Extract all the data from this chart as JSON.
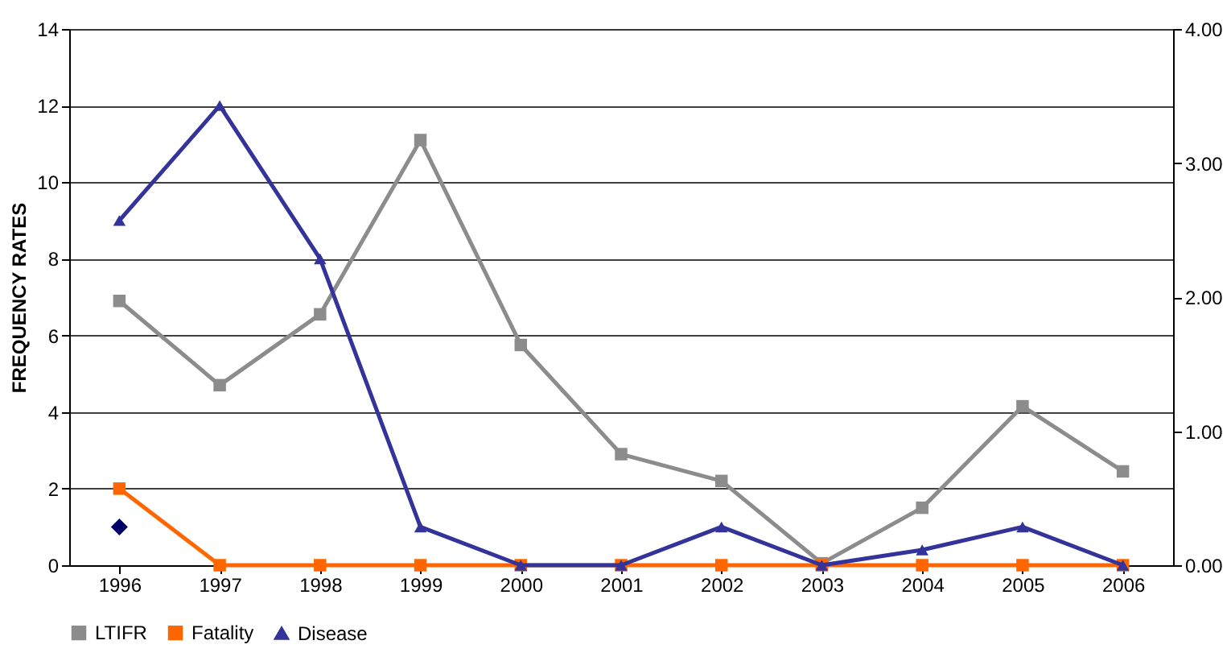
{
  "chart_data": {
    "type": "line",
    "ylabel": "FREQUENCY RATES",
    "categories": [
      "1996",
      "1997",
      "1998",
      "1999",
      "2000",
      "2001",
      "2002",
      "2003",
      "2004",
      "2005",
      "2006"
    ],
    "series": [
      {
        "name": "LTIFR",
        "color": "#8c8c8c",
        "marker": "square",
        "values": [
          6.9,
          4.7,
          6.55,
          11.1,
          5.75,
          2.9,
          2.2,
          0.05,
          1.5,
          4.15,
          2.45
        ]
      },
      {
        "name": "Fatality",
        "color": "#ff6600",
        "marker": "square",
        "values": [
          2,
          0,
          0,
          0,
          0,
          0,
          0,
          0,
          0,
          0,
          0
        ]
      },
      {
        "name": "Disease",
        "color": "#333399",
        "marker": "triangle",
        "values": [
          9,
          12,
          8,
          1,
          0,
          0,
          1,
          0,
          0.4,
          1,
          0
        ]
      },
      {
        "type": "scatter",
        "color": "#000066",
        "marker": "diamond",
        "values": [
          1,
          null,
          null,
          null,
          null,
          null,
          null,
          null,
          null,
          null,
          null
        ]
      }
    ],
    "ylim": [
      0,
      14
    ],
    "yticks": [
      0,
      2,
      4,
      6,
      8,
      10,
      12,
      14
    ],
    "y2lim": [
      0,
      4
    ],
    "y2ticks": [
      {
        "value": 0,
        "label": "0.00"
      },
      {
        "value": 1,
        "label": "1.00"
      },
      {
        "value": 2,
        "label": "2.00"
      },
      {
        "value": 3,
        "label": "3.00"
      },
      {
        "value": 4,
        "label": "4.00"
      }
    ],
    "grid": "y",
    "legend": "bottom",
    "line_style": "solid"
  }
}
